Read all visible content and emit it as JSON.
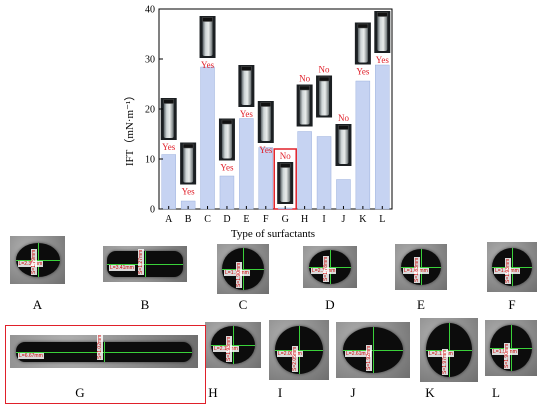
{
  "chart_data": {
    "type": "bar",
    "xlabel": "Type of surfactants",
    "ylabel": "IFT（mN·m⁻¹）",
    "ylim": [
      0,
      40
    ],
    "yticks": [
      0,
      10,
      20,
      30,
      40
    ],
    "categories": [
      "A",
      "B",
      "C",
      "D",
      "E",
      "F",
      "G",
      "H",
      "I",
      "J",
      "K",
      "L"
    ],
    "values": [
      10.9,
      1.6,
      28.4,
      6.6,
      18.1,
      12.3,
      0.2,
      15.5,
      14.5,
      5.9,
      25.6,
      28.8
    ],
    "bar_color": "#c6d3f2",
    "photo_tops": [
      22.2,
      13.3,
      38.6,
      18.1,
      28.8,
      21.6,
      9.4,
      24.9,
      26.7,
      17.0,
      37.3,
      39.6
    ],
    "result_labels": [
      "Yes",
      "Yes",
      "Yes",
      "Yes",
      "Yes",
      "Yes",
      "No",
      "No",
      "No",
      "No",
      "Yes",
      "Yes"
    ],
    "highlighted_category": "G",
    "label_color": "#e0202a"
  },
  "drop_images": {
    "row1": [
      {
        "letter": "A",
        "measure": "L=2.30mm",
        "measure_v": "S=1.79mm"
      },
      {
        "letter": "B",
        "measure": "L=3.41mm",
        "measure_v": "S=1.27mm"
      },
      {
        "letter": "C",
        "measure": "L=1.70mm",
        "measure_v": "S=1.90mm"
      },
      {
        "letter": "D",
        "measure": "L=2.11mm",
        "measure_v": "S=1.78mm"
      },
      {
        "letter": "E",
        "measure": "L=1.95mm",
        "measure_v": "S=1.83mm"
      },
      {
        "letter": "F",
        "measure": "L=1.96mm",
        "measure_v": "S=1.93mm"
      }
    ],
    "row2": [
      {
        "letter": "G",
        "measure": "L=6.67mm",
        "measure_v": "S=1.02mm"
      },
      {
        "letter": "H",
        "measure": "L=2.18mm",
        "measure_v": "S=1.93mm"
      },
      {
        "letter": "I",
        "measure": "L=2.00mm",
        "measure_v": "S=2.05mm"
      },
      {
        "letter": "J",
        "measure": "L=2.61mm",
        "measure_v": "S=1.92mm"
      },
      {
        "letter": "K",
        "measure": "L=2.13mm",
        "measure_v": "S=1.97mm"
      },
      {
        "letter": "L",
        "measure": "L=1.95mm",
        "measure_v": "S=1.90mm"
      }
    ]
  }
}
